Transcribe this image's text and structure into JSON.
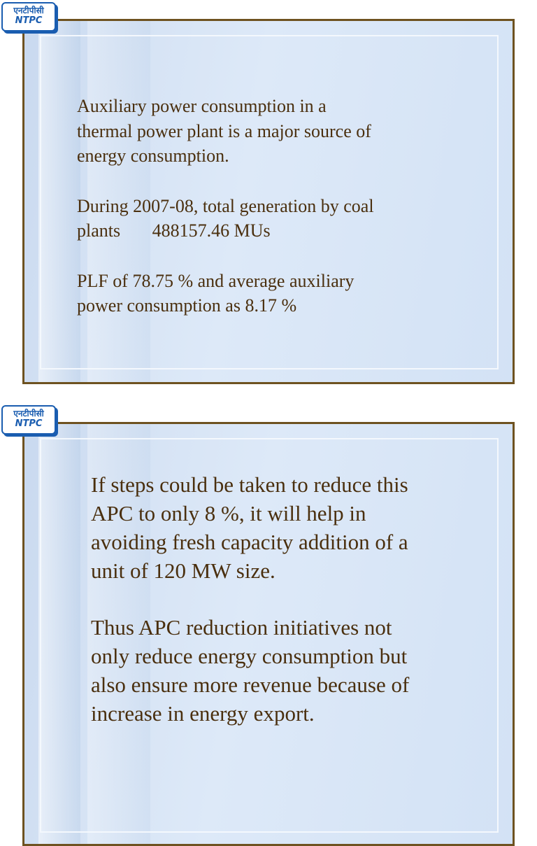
{
  "slides": [
    {
      "logo": {
        "hindi": "एनटीपीसी",
        "english": "NTPC"
      },
      "paragraphs": [
        [
          "Auxiliary power consumption in a",
          "thermal power plant is a major source of",
          "energy consumption."
        ],
        [
          "During 2007-08, total generation by coal",
          "plants       488157.46 MUs"
        ],
        [
          "PLF of 78.75 % and average auxiliary",
          "power consumption as 8.17 %"
        ]
      ]
    },
    {
      "logo": {
        "hindi": "एनटीपीसी",
        "english": "NTPC"
      },
      "paragraphs": [
        [
          "If steps could be taken to reduce this",
          "APC to only 8 %, it will help in",
          "avoiding fresh capacity addition of a",
          "unit of 120 MW size."
        ],
        [
          "Thus APC reduction initiatives not",
          "only reduce energy consumption but",
          "also ensure more revenue because of",
          "increase in energy export."
        ]
      ]
    }
  ]
}
